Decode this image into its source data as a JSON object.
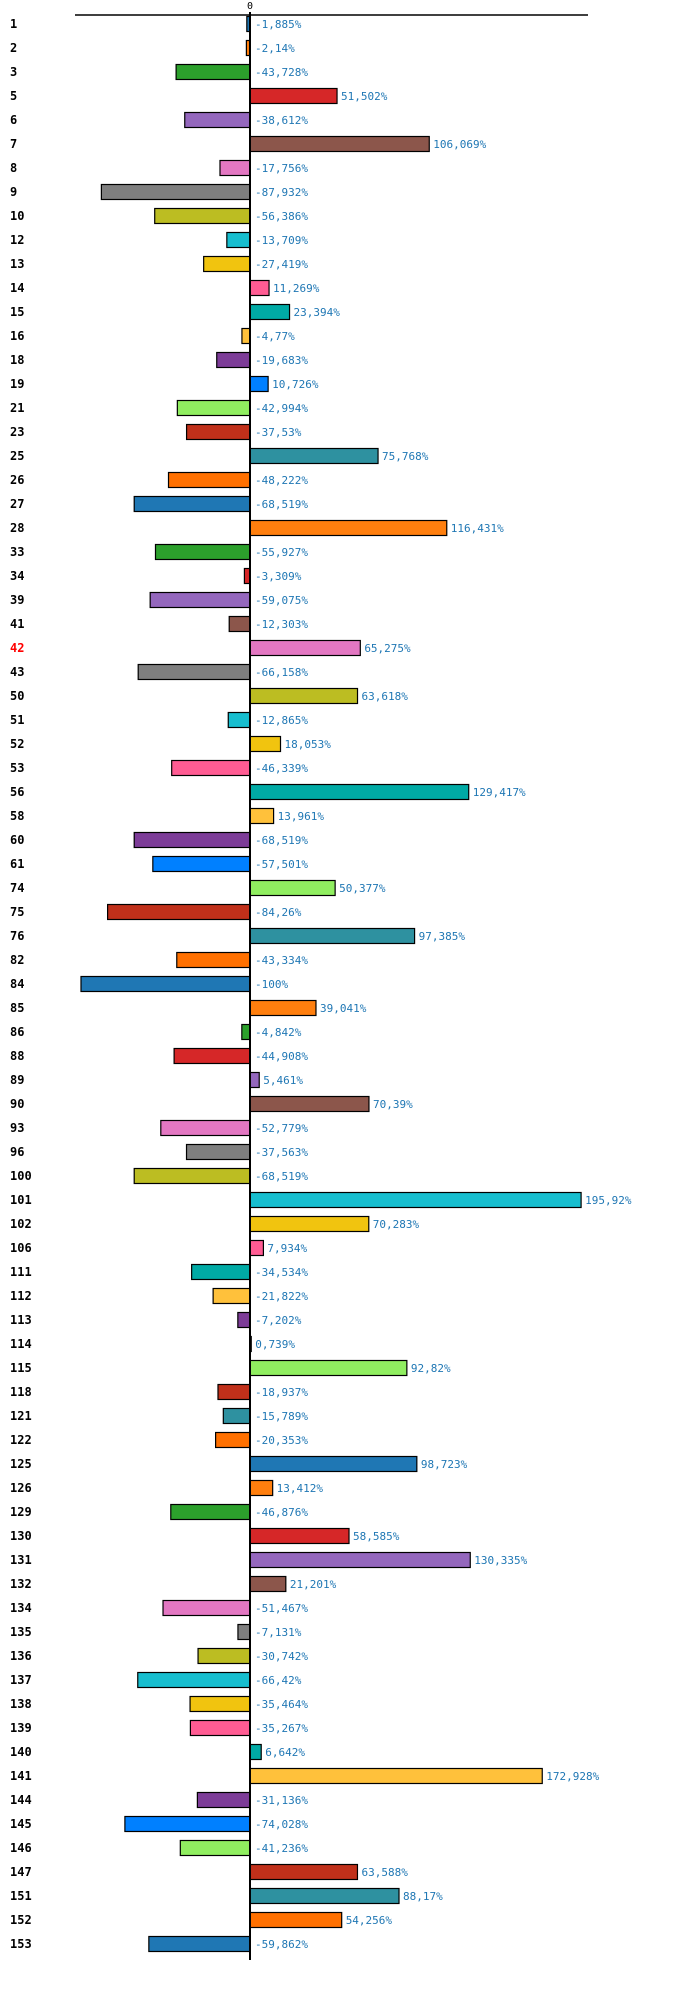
{
  "chart_data": {
    "type": "bar",
    "orientation": "horizontal",
    "title": "",
    "xlabel": "",
    "ylabel": "",
    "x_tick_labels": [
      "0"
    ],
    "xlim": [
      -103,
      200
    ],
    "grid": false,
    "legend": "none",
    "value_label_color": "#1f77b4",
    "highlight_category": "42",
    "highlight_color": "#ff0000",
    "palette": [
      "#1f77b4",
      "#ff7f0e",
      "#2ca02c",
      "#d62728",
      "#9467bd",
      "#8c564b",
      "#e377c2",
      "#7f7f7f",
      "#bcbd22",
      "#17becf",
      "#f1c40f",
      "#ff5c93",
      "#00aaa5",
      "#ffc13b",
      "#7d3c98",
      "#0080ff",
      "#90ee60",
      "#c0301a",
      "#2e91a0",
      "#ff7000"
    ],
    "categories": [
      "1",
      "2",
      "3",
      "5",
      "6",
      "7",
      "8",
      "9",
      "10",
      "12",
      "13",
      "14",
      "15",
      "16",
      "18",
      "19",
      "21",
      "23",
      "25",
      "26",
      "27",
      "28",
      "33",
      "34",
      "39",
      "41",
      "42",
      "43",
      "50",
      "51",
      "52",
      "53",
      "56",
      "58",
      "60",
      "61",
      "74",
      "75",
      "76",
      "82",
      "84",
      "85",
      "86",
      "88",
      "89",
      "90",
      "93",
      "96",
      "100",
      "101",
      "102",
      "106",
      "111",
      "112",
      "113",
      "114",
      "115",
      "118",
      "121",
      "122",
      "125",
      "126",
      "129",
      "130",
      "131",
      "132",
      "134",
      "135",
      "136",
      "137",
      "138",
      "139",
      "140",
      "141",
      "144",
      "145",
      "146",
      "147",
      "151",
      "152",
      "153"
    ],
    "values": [
      -1.885,
      -2.14,
      -43.728,
      51.502,
      -38.612,
      106.069,
      -17.756,
      -87.932,
      -56.386,
      -13.709,
      -27.419,
      11.269,
      23.394,
      -4.77,
      -19.683,
      10.726,
      -42.994,
      -37.53,
      75.768,
      -48.222,
      -68.519,
      116.431,
      -55.927,
      -3.309,
      -59.075,
      -12.303,
      65.275,
      -66.158,
      63.618,
      -12.865,
      18.053,
      -46.339,
      129.417,
      13.961,
      -68.519,
      -57.501,
      50.377,
      -84.26,
      97.385,
      -43.334,
      -100,
      39.041,
      -4.842,
      -44.908,
      5.461,
      70.39,
      -52.779,
      -37.563,
      -68.519,
      195.92,
      70.283,
      7.934,
      -34.534,
      -21.822,
      -7.202,
      0.739,
      92.82,
      -18.937,
      -15.789,
      -20.353,
      98.723,
      13.412,
      -46.876,
      58.585,
      130.335,
      21.201,
      -51.467,
      -7.131,
      -30.742,
      -66.42,
      -35.464,
      -35.267,
      6.642,
      172.928,
      -31.136,
      -74.028,
      -41.236,
      63.588,
      88.17,
      54.256,
      -59.862
    ],
    "value_labels": [
      "-1,885%",
      "-2,14%",
      "-43,728%",
      "51,502%",
      "-38,612%",
      "106,069%",
      "-17,756%",
      "-87,932%",
      "-56,386%",
      "-13,709%",
      "-27,419%",
      "11,269%",
      "23,394%",
      "-4,77%",
      "-19,683%",
      "10,726%",
      "-42,994%",
      "-37,53%",
      "75,768%",
      "-48,222%",
      "-68,519%",
      "116,431%",
      "-55,927%",
      "-3,309%",
      "-59,075%",
      "-12,303%",
      "65,275%",
      "-66,158%",
      "63,618%",
      "-12,865%",
      "18,053%",
      "-46,339%",
      "129,417%",
      "13,961%",
      "-68,519%",
      "-57,501%",
      "50,377%",
      "-84,26%",
      "97,385%",
      "-43,334%",
      "-100%",
      "39,041%",
      "-4,842%",
      "-44,908%",
      "5,461%",
      "70,39%",
      "-52,779%",
      "-37,563%",
      "-68,519%",
      "195,92%",
      "70,283%",
      "7,934%",
      "-34,534%",
      "-21,822%",
      "-7,202%",
      "0,739%",
      "92,82%",
      "-18,937%",
      "-15,789%",
      "-20,353%",
      "98,723%",
      "13,412%",
      "-46,876%",
      "58,585%",
      "130,335%",
      "21,201%",
      "-51,467%",
      "-7,131%",
      "-30,742%",
      "-66,42%",
      "-35,464%",
      "-35,267%",
      "6,642%",
      "172,928%",
      "-31,136%",
      "-74,028%",
      "-41,236%",
      "63,588%",
      "88,17%",
      "54,256%",
      "-59,862%"
    ]
  }
}
